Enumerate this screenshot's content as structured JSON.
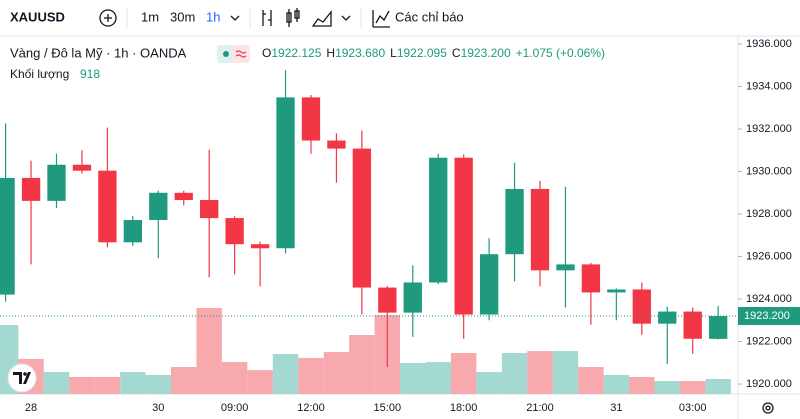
{
  "chart_data": {
    "type": "candlestick",
    "symbol": "XAUUSD",
    "intervals": [
      "1m",
      "30m",
      "1h"
    ],
    "indicators_button": "Các chỉ báo",
    "title": "Vàng / Đô la Mỹ · 1h · OANDA",
    "legend_values": [
      {
        "key": "O",
        "value": "1922.125"
      },
      {
        "key": "H",
        "value": "1923.680"
      },
      {
        "key": "L",
        "value": "1922.095"
      },
      {
        "key": "C",
        "value": "1923.200"
      }
    ],
    "change": "+1.075 (+0.06%)",
    "volume_label": "Khối lượng",
    "categories": [
      null,
      "28",
      null,
      null,
      null,
      null,
      "30",
      null,
      null,
      "09:00",
      null,
      null,
      "12:00",
      null,
      null,
      "15:00",
      null,
      null,
      "18:00",
      null,
      null,
      "21:00",
      null,
      null,
      "31",
      null,
      null,
      "03:00",
      null
    ],
    "open": [
      1924.21,
      1929.7,
      1928.62,
      1930.32,
      1930.04,
      1926.67,
      1927.72,
      1929.0,
      1928.66,
      1927.81,
      1926.58,
      1926.39,
      1933.49,
      1931.46,
      1931.08,
      1924.54,
      1923.36,
      1924.78,
      1930.65,
      1923.27,
      1926.11,
      1929.18,
      1925.35,
      1925.63,
      1924.31,
      1924.45,
      1922.84,
      1923.41,
      1922.125
    ],
    "high": [
      1932.26,
      1930.51,
      1930.84,
      1931.0,
      1932.07,
      1927.9,
      1929.1,
      1929.1,
      1931.03,
      1927.9,
      1926.7,
      1934.77,
      1933.6,
      1931.8,
      1931.93,
      1924.6,
      1925.59,
      1930.84,
      1930.8,
      1926.86,
      1930.41,
      1929.56,
      1929.28,
      1925.7,
      1924.5,
      1924.78,
      1923.64,
      1923.6,
      1923.68
    ],
    "low": [
      1923.88,
      1925.63,
      1928.28,
      1929.9,
      1926.44,
      1926.5,
      1925.92,
      1928.4,
      1925.02,
      1925.16,
      1924.59,
      1926.15,
      1930.84,
      1929.47,
      1923.27,
      1920.8,
      1922.22,
      1924.7,
      1922.13,
      1923.0,
      1924.83,
      1924.59,
      1923.6,
      1922.79,
      1923.0,
      1922.32,
      1920.95,
      1921.42,
      1922.095
    ],
    "close": [
      1929.7,
      1928.62,
      1930.32,
      1930.04,
      1926.67,
      1927.72,
      1929.0,
      1928.66,
      1927.81,
      1926.58,
      1926.39,
      1933.49,
      1931.46,
      1931.08,
      1924.54,
      1923.36,
      1924.78,
      1930.65,
      1923.27,
      1926.11,
      1929.18,
      1925.35,
      1925.63,
      1924.31,
      1924.45,
      1922.84,
      1923.41,
      1922.13,
      1923.2
    ],
    "volume": [
      4210,
      2140,
      1340,
      1040,
      1040,
      1340,
      1160,
      1650,
      5250,
      1950,
      1460,
      2440,
      2200,
      2560,
      3600,
      4820,
      1890,
      1950,
      2500,
      1340,
      2500,
      2620,
      2620,
      1650,
      1160,
      1040,
      790,
      790,
      918
    ],
    "up_color": "#1f9a7f",
    "down_color": "#f23645",
    "volume_up_color": "#a3d9d0",
    "volume_down_color": "#f7a9ad",
    "last_price": {
      "value": 1923.2,
      "label": "1923.200"
    },
    "ylim": [
      1919.53,
      1936.38
    ],
    "yticks": [
      {
        "value": 1920,
        "label": "1920.000"
      },
      {
        "value": 1922,
        "label": "1922.000"
      },
      {
        "value": 1924,
        "label": "1924.000"
      },
      {
        "value": 1926,
        "label": "1926.000"
      },
      {
        "value": 1928,
        "label": "1928.000"
      },
      {
        "value": 1930,
        "label": "1930.000"
      },
      {
        "value": 1932,
        "label": "1932.000"
      },
      {
        "value": 1934,
        "label": "1934.000"
      },
      {
        "value": 1936,
        "label": "1936.000"
      }
    ]
  }
}
